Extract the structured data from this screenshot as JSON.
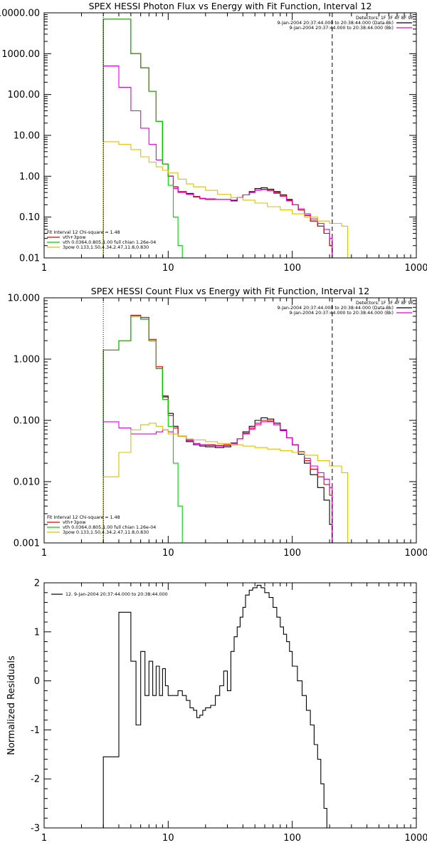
{
  "chart_data": [
    {
      "type": "line",
      "title": "SPEX HESSI Photon Flux vs Energy with Fit Function, Interval 12",
      "xlog": true,
      "ylog": true,
      "xlim": [
        1,
        1000
      ],
      "ylim": [
        0.01,
        10000
      ],
      "xticks": [
        1,
        10,
        100,
        1000
      ],
      "xtick_labels": [
        "1",
        "10",
        "100",
        "1000"
      ],
      "yticks": [
        0.01,
        0.1,
        1,
        10,
        100,
        1000,
        10000
      ],
      "ytick_labels": [
        "0.01",
        "0.10",
        "1.00",
        "10.00",
        "100.00",
        "1000.00",
        "10000.00"
      ],
      "ylabel": "",
      "vlines": [
        {
          "x": 3,
          "style": "dotted"
        },
        {
          "x": 210,
          "style": "dashed"
        }
      ],
      "legend_tr": [
        "Detectors: 1F 3F 4F 8F 9F",
        "9-Jan-2004 20:37:44.000 to 20:38:44.000 (Data-Bk)",
        "9-Jan-2004 20:37:44.000 to 20:38:44.000 (Bk)"
      ],
      "legend_tr_colors": [
        "",
        "#000000",
        "#e000e0"
      ],
      "legend_bl_header": "Fit Interval 12   Chi-square = 1.48",
      "legend_bl": [
        {
          "label": "vth+3pow",
          "color": "#e00000"
        },
        {
          "label": "vth 0.0364,0.805,1.00  full chian 1.26e-04",
          "color": "#00d000"
        },
        {
          "label": "3pow 0.133,1.50,4.34,2.47,11.8,0.830",
          "color": "#e0c000"
        }
      ],
      "series": [
        {
          "color": "#000000",
          "x": [
            3,
            4,
            5,
            6,
            7,
            8,
            9,
            10,
            11,
            12,
            14,
            16,
            18,
            20,
            24,
            28,
            32,
            36,
            40,
            45,
            50,
            56,
            63,
            71,
            80,
            90,
            100,
            112,
            125,
            140,
            160,
            180,
            200,
            210
          ],
          "y": [
            7000,
            7000,
            1000,
            450,
            120,
            22,
            2.0,
            1.0,
            0.55,
            0.42,
            0.38,
            0.32,
            0.28,
            0.28,
            0.27,
            0.27,
            0.25,
            0.3,
            0.35,
            0.42,
            0.5,
            0.52,
            0.48,
            0.42,
            0.35,
            0.27,
            0.2,
            0.15,
            0.11,
            0.08,
            0.06,
            0.04,
            0.02,
            0.01
          ]
        },
        {
          "color": "#e00000",
          "x": [
            3,
            4,
            5,
            6,
            7,
            8,
            9,
            10,
            11,
            12,
            14,
            16,
            18,
            20,
            24,
            28,
            32,
            36,
            40,
            45,
            50,
            56,
            63,
            71,
            80,
            90,
            100,
            112,
            125,
            140,
            160,
            180,
            200,
            210
          ],
          "y": [
            7000,
            7000,
            1000,
            450,
            120,
            22,
            2.0,
            1.0,
            0.55,
            0.42,
            0.37,
            0.31,
            0.28,
            0.27,
            0.27,
            0.27,
            0.26,
            0.3,
            0.35,
            0.4,
            0.46,
            0.48,
            0.45,
            0.4,
            0.33,
            0.26,
            0.2,
            0.15,
            0.11,
            0.08,
            0.06,
            0.04,
            0.02,
            0.01
          ]
        },
        {
          "color": "#e000e0",
          "x": [
            3,
            4,
            5,
            6,
            7,
            8,
            9,
            10,
            11,
            12,
            14,
            16,
            18,
            20,
            24,
            28,
            32,
            36,
            40,
            45,
            50,
            56,
            63,
            71,
            80,
            90,
            100,
            112,
            125,
            140,
            160,
            180,
            200,
            210
          ],
          "y": [
            500,
            150,
            40,
            15,
            6,
            2.5,
            2.0,
            1.0,
            0.5,
            0.4,
            0.36,
            0.32,
            0.29,
            0.28,
            0.27,
            0.27,
            0.26,
            0.3,
            0.35,
            0.4,
            0.46,
            0.47,
            0.44,
            0.38,
            0.32,
            0.25,
            0.2,
            0.16,
            0.12,
            0.09,
            0.07,
            0.05,
            0.03,
            0.01
          ]
        },
        {
          "color": "#00d000",
          "x": [
            3,
            4,
            5,
            6,
            7,
            8,
            9,
            10,
            11,
            12,
            13
          ],
          "y": [
            7000,
            7000,
            1000,
            450,
            120,
            22,
            2.0,
            0.6,
            0.1,
            0.02,
            0.01
          ]
        },
        {
          "color": "#e0c000",
          "x": [
            3,
            4,
            5,
            6,
            7,
            8,
            9,
            10,
            12,
            14,
            16,
            20,
            25,
            32,
            40,
            50,
            63,
            80,
            100,
            125,
            160,
            200,
            250,
            280
          ],
          "y": [
            7,
            6,
            4.5,
            3,
            2.2,
            1.7,
            1.4,
            1.2,
            0.85,
            0.65,
            0.55,
            0.45,
            0.36,
            0.3,
            0.26,
            0.22,
            0.18,
            0.15,
            0.12,
            0.1,
            0.08,
            0.07,
            0.06,
            0.01
          ]
        }
      ]
    },
    {
      "type": "line",
      "title": "SPEX HESSI Count Flux vs Energy with Fit Function, Interval 12",
      "xlog": true,
      "ylog": true,
      "xlim": [
        1,
        1000
      ],
      "ylim": [
        0.001,
        10
      ],
      "xticks": [
        1,
        10,
        100,
        1000
      ],
      "xtick_labels": [
        "1",
        "10",
        "100",
        "1000"
      ],
      "yticks": [
        0.001,
        0.01,
        0.1,
        1,
        10
      ],
      "ytick_labels": [
        "0.001",
        "0.010",
        "0.100",
        "1.000",
        "10.000"
      ],
      "ylabel": "",
      "vlines": [
        {
          "x": 3,
          "style": "dotted"
        },
        {
          "x": 210,
          "style": "dashed"
        }
      ],
      "legend_tr": [
        "Detectors: 1F 3F 4F 8F 9F",
        "9-Jan-2004 20:37:44.000 to 20:38:44.000 (Data-Bk)",
        "9-Jan-2004 20:37:44.000 to 20:38:44.000 (Bk)"
      ],
      "legend_tr_colors": [
        "",
        "#000000",
        "#e000e0"
      ],
      "legend_bl_header": "Fit Interval 12   Chi-square = 1.48",
      "legend_bl": [
        {
          "label": "vth+3pow",
          "color": "#e00000"
        },
        {
          "label": "vth 0.0364,0.805,1.00  full chian 1.26e-04",
          "color": "#00d000"
        },
        {
          "label": "3pow 0.133,1.50,4.34,2.47,11.8,0.830",
          "color": "#e0c000"
        }
      ],
      "series": [
        {
          "color": "#000000",
          "x": [
            3,
            4,
            5,
            6,
            7,
            8,
            9,
            10,
            11,
            12,
            14,
            16,
            18,
            20,
            24,
            28,
            32,
            36,
            40,
            45,
            50,
            56,
            63,
            71,
            80,
            90,
            100,
            112,
            125,
            140,
            160,
            180,
            200,
            210
          ],
          "y": [
            1.4,
            2.0,
            5.0,
            4.5,
            2.0,
            0.7,
            0.25,
            0.13,
            0.08,
            0.055,
            0.045,
            0.04,
            0.038,
            0.037,
            0.036,
            0.037,
            0.04,
            0.05,
            0.065,
            0.08,
            0.1,
            0.11,
            0.105,
            0.09,
            0.07,
            0.052,
            0.04,
            0.028,
            0.02,
            0.013,
            0.008,
            0.005,
            0.002,
            0.001
          ]
        },
        {
          "color": "#e00000",
          "x": [
            3,
            4,
            5,
            6,
            7,
            8,
            9,
            10,
            11,
            12,
            14,
            16,
            18,
            20,
            24,
            28,
            32,
            36,
            40,
            45,
            50,
            56,
            63,
            71,
            80,
            90,
            100,
            112,
            125,
            140,
            160,
            180,
            200,
            210
          ],
          "y": [
            1.4,
            2.0,
            5.2,
            4.8,
            2.1,
            0.75,
            0.24,
            0.12,
            0.075,
            0.055,
            0.048,
            0.042,
            0.04,
            0.04,
            0.039,
            0.04,
            0.043,
            0.05,
            0.062,
            0.075,
            0.09,
            0.1,
            0.098,
            0.085,
            0.068,
            0.052,
            0.04,
            0.03,
            0.022,
            0.016,
            0.012,
            0.009,
            0.006,
            0.001
          ]
        },
        {
          "color": "#e000e0",
          "x": [
            3,
            4,
            5,
            6,
            7,
            8,
            9,
            10,
            11,
            12,
            14,
            16,
            18,
            20,
            24,
            28,
            32,
            36,
            40,
            45,
            50,
            56,
            63,
            71,
            80,
            90,
            100,
            112,
            125,
            140,
            160,
            180,
            200,
            210
          ],
          "y": [
            0.095,
            0.075,
            0.06,
            0.06,
            0.06,
            0.065,
            0.07,
            0.065,
            0.06,
            0.055,
            0.047,
            0.042,
            0.04,
            0.039,
            0.038,
            0.039,
            0.042,
            0.05,
            0.06,
            0.072,
            0.085,
            0.095,
            0.095,
            0.085,
            0.068,
            0.052,
            0.04,
            0.031,
            0.024,
            0.018,
            0.014,
            0.011,
            0.008,
            0.001
          ]
        },
        {
          "color": "#00d000",
          "x": [
            3,
            4,
            5,
            6,
            7,
            8,
            9,
            10,
            11,
            12,
            13
          ],
          "y": [
            1.4,
            2.0,
            5.0,
            4.5,
            2.0,
            0.7,
            0.22,
            0.08,
            0.02,
            0.004,
            0.001
          ]
        },
        {
          "color": "#e0c000",
          "x": [
            3,
            4,
            5,
            6,
            7,
            8,
            9,
            10,
            12,
            14,
            16,
            20,
            25,
            32,
            40,
            50,
            63,
            80,
            100,
            125,
            160,
            200,
            250,
            280
          ],
          "y": [
            0.012,
            0.03,
            0.07,
            0.085,
            0.09,
            0.08,
            0.07,
            0.06,
            0.055,
            0.05,
            0.048,
            0.045,
            0.042,
            0.04,
            0.038,
            0.036,
            0.034,
            0.032,
            0.03,
            0.027,
            0.022,
            0.018,
            0.014,
            0.001
          ]
        }
      ]
    },
    {
      "type": "line",
      "title": "",
      "xlog": true,
      "ylog": false,
      "xlim": [
        1,
        1000
      ],
      "ylim": [
        -3,
        2
      ],
      "xticks": [
        1,
        10,
        100,
        1000
      ],
      "xtick_labels": [
        "1",
        "10",
        "100",
        "1000"
      ],
      "yticks": [
        -3,
        -2,
        -1,
        0,
        1,
        2
      ],
      "ytick_labels": [
        "-3",
        "-2",
        "-1",
        "0",
        "1",
        "2"
      ],
      "ylabel": "Normalized Residuals",
      "vlines": [],
      "legend_tr": [],
      "legend_tr_colors": [],
      "legend_bl_header": "",
      "legend_bl": [],
      "legend_tl": "12.  9-Jan-2004 20:37:44.000 to 20:38:44.000",
      "series": [
        {
          "color": "#000000",
          "x": [
            3,
            4,
            5,
            5.5,
            6,
            6.5,
            7,
            7.5,
            8,
            8.5,
            9,
            9.5,
            10,
            11,
            12,
            13,
            14,
            15,
            16,
            17,
            18,
            19,
            20,
            22,
            24,
            26,
            28,
            30,
            32,
            34,
            36,
            38,
            40,
            42,
            45,
            48,
            52,
            56,
            60,
            65,
            70,
            75,
            80,
            85,
            90,
            95,
            100,
            110,
            120,
            130,
            140,
            150,
            160,
            170,
            180,
            190,
            200,
            210
          ],
          "y": [
            -1.55,
            1.4,
            0.4,
            -0.9,
            0.6,
            -0.3,
            0.4,
            -0.3,
            0.3,
            -0.3,
            0.25,
            -0.1,
            -0.3,
            -0.3,
            -0.2,
            -0.3,
            -0.4,
            -0.55,
            -0.6,
            -0.75,
            -0.7,
            -0.6,
            -0.55,
            -0.5,
            -0.3,
            -0.1,
            0.2,
            -0.2,
            0.6,
            0.9,
            1.1,
            1.3,
            1.5,
            1.75,
            1.85,
            1.9,
            1.95,
            1.9,
            1.8,
            1.7,
            1.5,
            1.3,
            1.1,
            0.95,
            0.8,
            0.6,
            0.3,
            0.0,
            -0.3,
            -0.6,
            -0.9,
            -1.3,
            -1.6,
            -2.1,
            -2.6,
            -3.0,
            -3.0,
            -3.0
          ]
        }
      ]
    }
  ]
}
